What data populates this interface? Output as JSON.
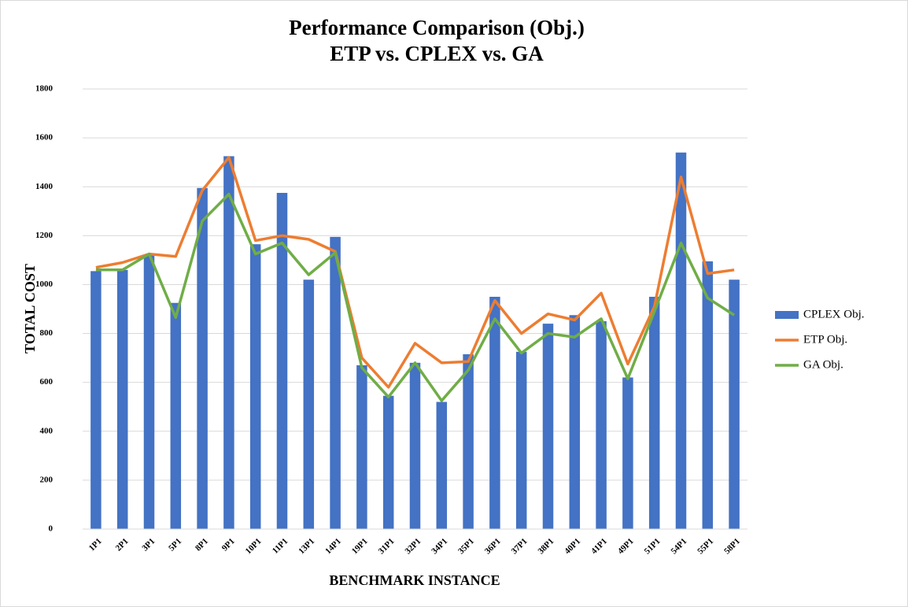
{
  "chart_data": {
    "type": "bar_line",
    "title": "Performance Comparison (Obj.)",
    "subtitle": "ETP vs. CPLEX vs. GA",
    "x_label": "BENCHMARK INSTANCE",
    "y_label": "TOTAL COST",
    "categories": [
      "1P1",
      "2P1",
      "3P1",
      "5P1",
      "8P1",
      "9P1",
      "10P1",
      "11P1",
      "13P1",
      "14P1",
      "19P1",
      "31P1",
      "32P1",
      "34P1",
      "35P1",
      "36P1",
      "37P1",
      "38P1",
      "40P1",
      "41P1",
      "49P1",
      "51P1",
      "54P1",
      "55P1",
      "58P1"
    ],
    "series": [
      {
        "name": "CPLEX Obj.",
        "type": "bar",
        "color": "#4472c4",
        "values": [
          1055,
          1060,
          1120,
          925,
          1395,
          1525,
          1165,
          1375,
          1020,
          1195,
          670,
          545,
          680,
          520,
          715,
          950,
          725,
          840,
          875,
          850,
          620,
          950,
          1540,
          1095,
          1020
        ]
      },
      {
        "name": "ETP Obj.",
        "type": "line",
        "color": "#ed7d31",
        "values": [
          1070,
          1090,
          1125,
          1115,
          1385,
          1520,
          1180,
          1200,
          1185,
          1135,
          700,
          580,
          760,
          680,
          685,
          935,
          800,
          880,
          855,
          965,
          675,
          910,
          1440,
          1045,
          1060
        ]
      },
      {
        "name": "GA Obj.",
        "type": "line",
        "color": "#70ad47",
        "values": [
          1060,
          1060,
          1125,
          865,
          1260,
          1370,
          1125,
          1170,
          1040,
          1130,
          660,
          540,
          680,
          525,
          650,
          860,
          720,
          800,
          785,
          860,
          615,
          890,
          1170,
          945,
          875
        ]
      }
    ],
    "ylim": [
      0,
      1800
    ],
    "yticks": [
      0,
      200,
      400,
      600,
      800,
      1000,
      1200,
      1400,
      1600,
      1800
    ],
    "grid": true,
    "legend": "right"
  }
}
